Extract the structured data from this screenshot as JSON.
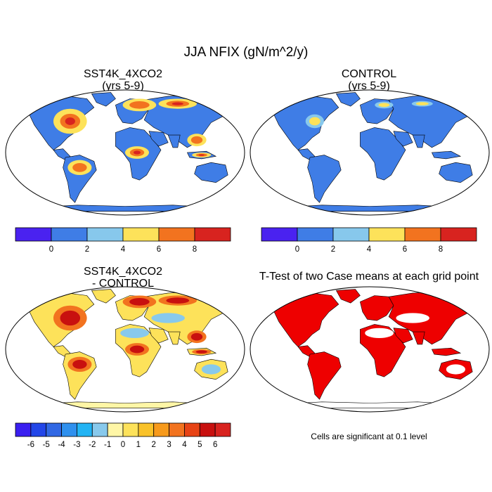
{
  "title": "JJA NFIX (gN/m^2/y)",
  "note": "Cells are significant at 0.1 level",
  "colors": {
    "abs_bins": [
      "#4a22f0",
      "#3f7de6",
      "#87c8ec",
      "#fde25a",
      "#f2731f",
      "#d8231f"
    ],
    "diff_bins": [
      "#3a1ff0",
      "#2346e8",
      "#3168e4",
      "#2f90ee",
      "#23b4f4",
      "#88c9ec",
      "#fff6a6",
      "#fde25a",
      "#f9c229",
      "#f79a1c",
      "#f2731f",
      "#e74315",
      "#c8100f",
      "#d8231f"
    ],
    "ttest": "#ee0000",
    "land_default": "#3f7de6"
  },
  "chart_data": [
    {
      "type": "heatmap",
      "title": "SST4K_4XCO2",
      "subtitle": "(yrs 5-9)",
      "variable": "JJA NFIX (gN/m^2/y)",
      "projection": "Robinson world map",
      "colorbar": {
        "levels": [
          0,
          2,
          4,
          6,
          8
        ],
        "tick_labels": [
          "0",
          "2",
          "4",
          "6",
          "8"
        ]
      },
      "description_values": "mostly 0-2 over land; 4-8+ over eastern North America, Europe, Siberia, Amazon, Central Africa, SE Asia"
    },
    {
      "type": "heatmap",
      "title": "CONTROL",
      "subtitle": "(yrs 5-9)",
      "variable": "JJA NFIX (gN/m^2/y)",
      "projection": "Robinson world map",
      "colorbar": {
        "levels": [
          0,
          2,
          4,
          6,
          8
        ],
        "tick_labels": [
          "0",
          "2",
          "4",
          "6",
          "8"
        ]
      },
      "description_values": "mostly 0-2 over land; small patches of 2-6 in Eurasia and eastern North America"
    },
    {
      "type": "heatmap",
      "title": "SST4K_4XCO2",
      "subtitle": "- CONTROL",
      "variable": "difference",
      "projection": "Robinson world map",
      "colorbar": {
        "levels": [
          -6,
          -5,
          -4,
          -3,
          -2,
          -1,
          0,
          1,
          2,
          3,
          4,
          5,
          6
        ],
        "tick_labels": [
          "-6",
          "-5",
          "-4",
          "-3",
          "-2",
          "-1",
          "0",
          "1",
          "2",
          "3",
          "4",
          "5",
          "6"
        ]
      },
      "description_values": "positive 0-6 over most land; negative 0 to -2 over Sahara, Arabia, Central Asia, Australia interior"
    },
    {
      "type": "heatmap",
      "title": "T-Test of two Case means at each grid point",
      "variable": "significance",
      "projection": "Robinson world map",
      "legend": "Cells are significant at 0.1 level"
    }
  ]
}
